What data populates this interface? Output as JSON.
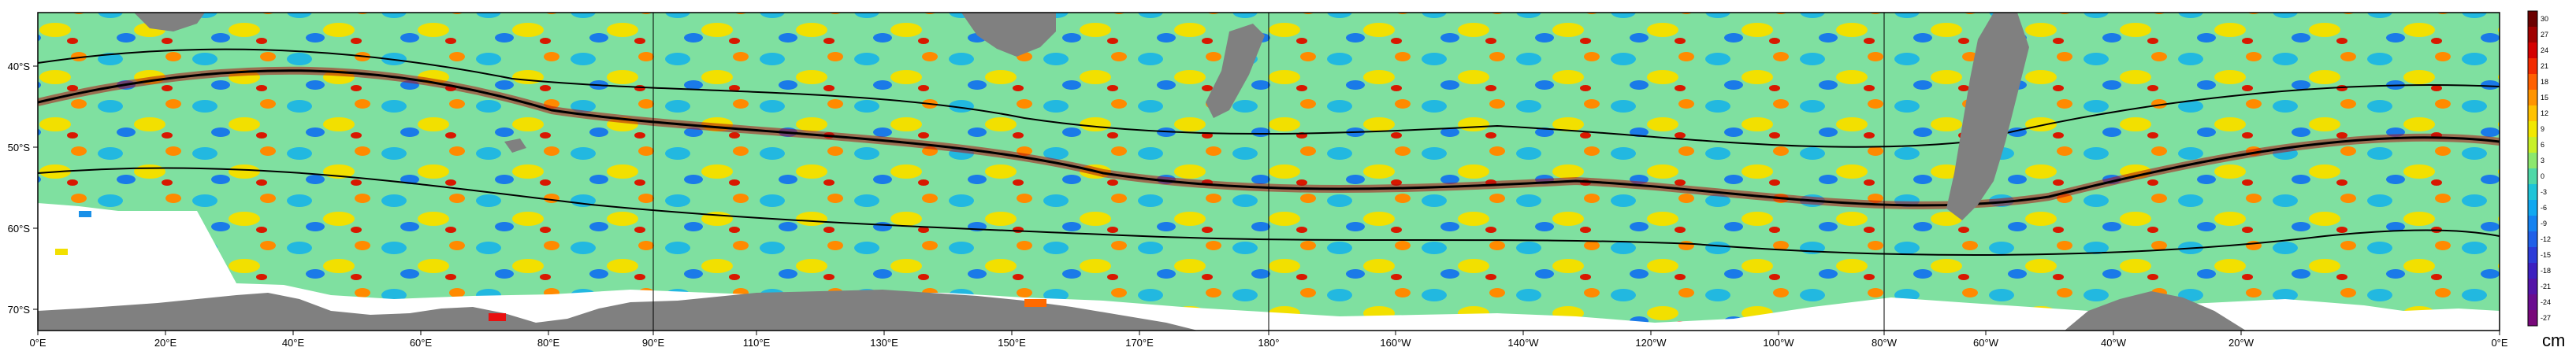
{
  "map": {
    "lon_ticks": [
      "0°E",
      "20°E",
      "40°E",
      "60°E",
      "80°E",
      "90°E",
      "110°E",
      "130°E",
      "150°E",
      "170°E",
      "180°",
      "160°W",
      "140°W",
      "120°W",
      "100°W",
      "80°W",
      "60°W",
      "40°W",
      "20°W",
      "0°E"
    ],
    "lat_ticks": [
      "40°S",
      "50°S",
      "60°S",
      "70°S"
    ],
    "colorbar": {
      "unit": "cm",
      "labels": [
        "30",
        "27",
        "24",
        "21",
        "18",
        "15",
        "12",
        "9",
        "6",
        "3",
        "0",
        "-3",
        "-6",
        "-9",
        "-12",
        "-15",
        "-18",
        "-21",
        "-24",
        "-27"
      ],
      "colors": [
        "#6b0000",
        "#a00000",
        "#d40000",
        "#f22a00",
        "#ff6000",
        "#ff9400",
        "#ffc200",
        "#f2e800",
        "#c8f028",
        "#8ce86e",
        "#4ed8a8",
        "#1ec4d8",
        "#10a8f0",
        "#1482f0",
        "#2060e8",
        "#2c3cd8",
        "#3c20c0",
        "#5414a8",
        "#6a0c90",
        "#78087a"
      ]
    },
    "land_color": "#808080",
    "no_data_color": "#ffffff"
  }
}
